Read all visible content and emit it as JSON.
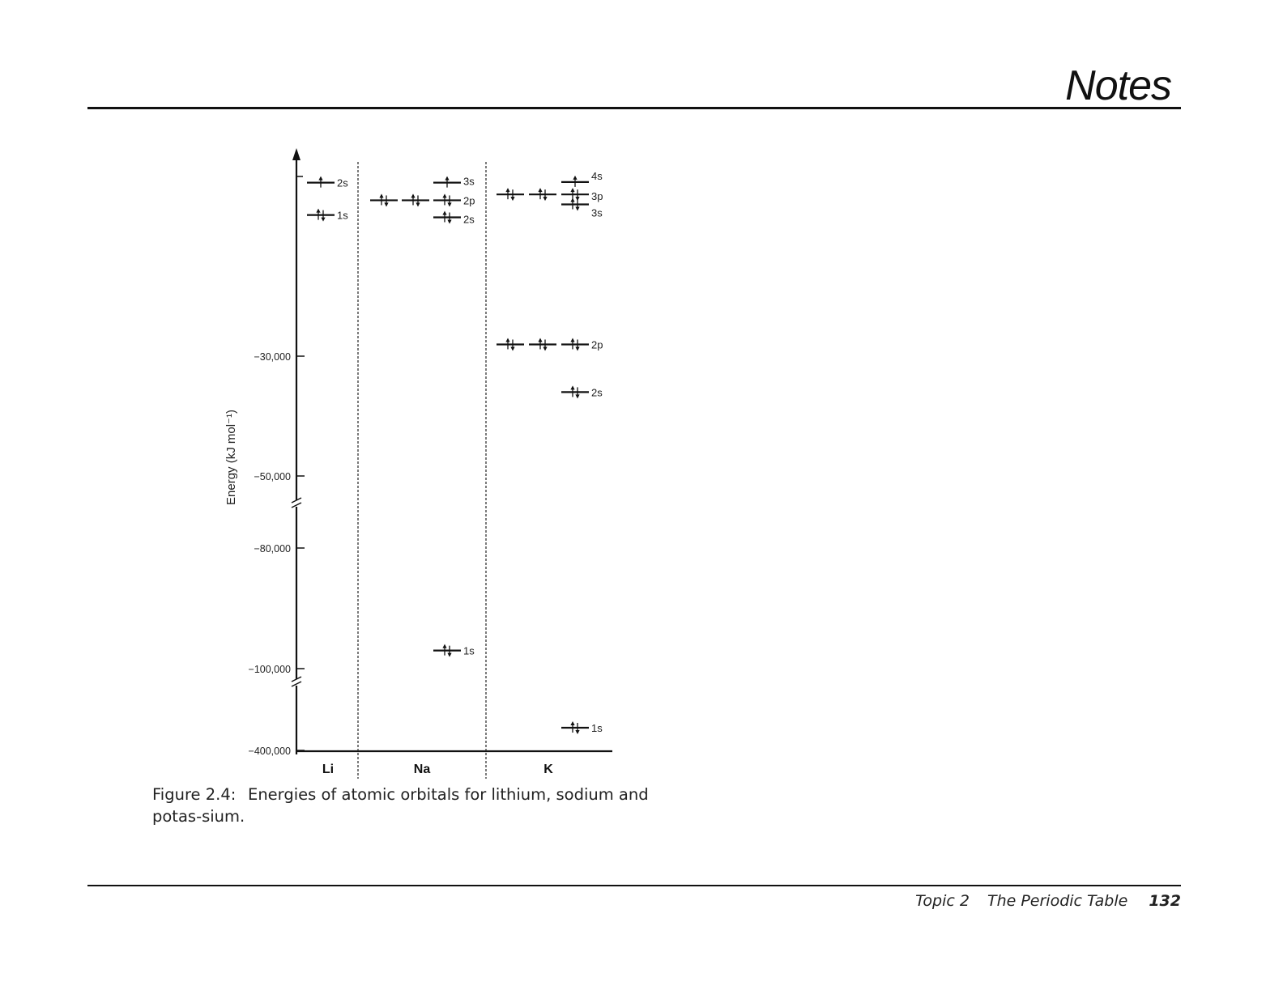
{
  "header": {
    "title": "Notes"
  },
  "chart_data": {
    "type": "energy-level-diagram",
    "ylabel": "Energy (kJ mol⁻¹)",
    "y_ticks": [
      "−30,000",
      "−50,000",
      "−80,000",
      "−100,000",
      "−400,000"
    ],
    "y_tick_values": [
      -30000,
      -50000,
      -80000,
      -100000,
      -400000
    ],
    "axis_breaks": [
      -65000,
      -250000
    ],
    "columns": [
      "Li",
      "Na",
      "K"
    ],
    "series": [
      {
        "name": "Li",
        "orbitals": [
          {
            "label": "1s",
            "energy": -6000,
            "electrons": 2,
            "boxes": 1
          },
          {
            "label": "2s",
            "energy": -500,
            "electrons": 1,
            "boxes": 1
          }
        ]
      },
      {
        "name": "Na",
        "orbitals": [
          {
            "label": "1s",
            "energy": -97000,
            "electrons": 2,
            "boxes": 1
          },
          {
            "label": "2s",
            "energy": -6400,
            "electrons": 2,
            "boxes": 1
          },
          {
            "label": "2p",
            "energy": -3500,
            "electrons": 6,
            "boxes": 3
          },
          {
            "label": "3s",
            "energy": -500,
            "electrons": 1,
            "boxes": 1
          }
        ]
      },
      {
        "name": "K",
        "orbitals": [
          {
            "label": "1s",
            "energy": -350000,
            "electrons": 2,
            "boxes": 1
          },
          {
            "label": "2s",
            "energy": -36000,
            "electrons": 2,
            "boxes": 1
          },
          {
            "label": "2p",
            "energy": -28000,
            "electrons": 6,
            "boxes": 3
          },
          {
            "label": "3s",
            "energy": -4200,
            "electrons": 2,
            "boxes": 1
          },
          {
            "label": "3p",
            "energy": -2500,
            "electrons": 6,
            "boxes": 3
          },
          {
            "label": "4s",
            "energy": -400,
            "electrons": 1,
            "boxes": 1
          }
        ]
      }
    ]
  },
  "caption": {
    "label": "Figure 2.4:",
    "text": "Energies of atomic orbitals for lithium, sodium and potas-sium."
  },
  "footer": {
    "topic": "Topic 2",
    "title": "The Periodic Table",
    "page": "132"
  }
}
